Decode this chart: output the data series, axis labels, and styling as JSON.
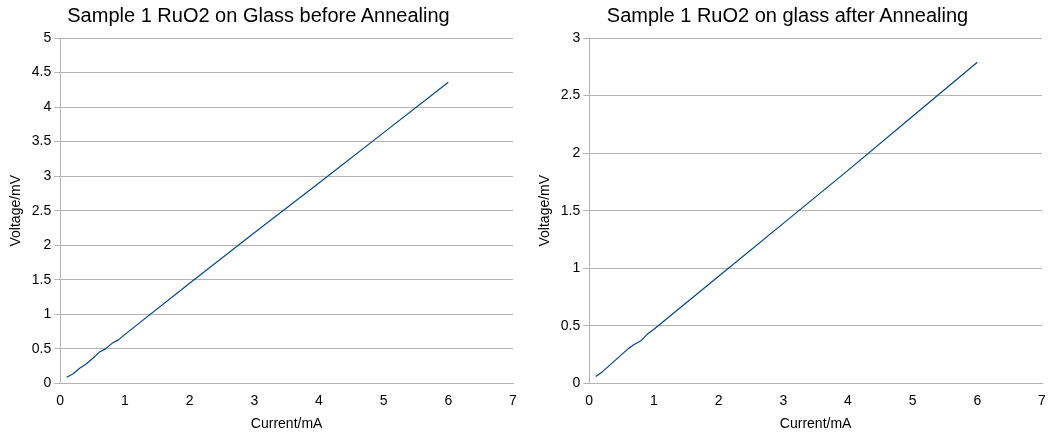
{
  "chart_data": [
    {
      "type": "line",
      "title": "Sample 1 RuO2 on Glass before Annealing",
      "xlabel": "Current/mA",
      "ylabel": "Voltage/mV",
      "x": [
        0.1,
        0.2,
        0.3,
        0.4,
        0.5,
        0.6,
        0.7,
        0.8,
        0.9,
        1,
        2,
        3,
        4,
        5,
        6
      ],
      "series": [
        {
          "color": "#004586",
          "values": [
            0.09,
            0.14,
            0.22,
            0.28,
            0.36,
            0.45,
            0.5,
            0.58,
            0.63,
            0.71,
            1.45,
            2.18,
            2.9,
            3.63,
            4.36
          ]
        }
      ],
      "xlim": [
        0,
        7
      ],
      "xticks": [
        0,
        1,
        2,
        3,
        4,
        5,
        6,
        7
      ],
      "ylim": [
        0,
        5
      ],
      "yticks": [
        0,
        0.5,
        1,
        1.5,
        2,
        2.5,
        3,
        3.5,
        4,
        4.5,
        5
      ],
      "grid": "y",
      "marker": "none",
      "line_style": "solid"
    },
    {
      "type": "line",
      "title": "Sample 1 RuO2 on glass after Annealing",
      "xlabel": "Current/mA",
      "ylabel": "Voltage/mV",
      "x": [
        0.1,
        0.2,
        0.3,
        0.4,
        0.5,
        0.6,
        0.7,
        0.8,
        0.9,
        1,
        2,
        3,
        4,
        5,
        6
      ],
      "series": [
        {
          "color": "#004586",
          "values": [
            0.06,
            0.1,
            0.15,
            0.2,
            0.25,
            0.3,
            0.34,
            0.37,
            0.43,
            0.47,
            0.93,
            1.39,
            1.85,
            2.32,
            2.79
          ]
        }
      ],
      "xlim": [
        0,
        7
      ],
      "xticks": [
        0,
        1,
        2,
        3,
        4,
        5,
        6,
        7
      ],
      "ylim": [
        0,
        3
      ],
      "yticks": [
        0,
        0.5,
        1,
        1.5,
        2,
        2.5,
        3
      ],
      "grid": "y",
      "marker": "none",
      "line_style": "solid"
    }
  ]
}
